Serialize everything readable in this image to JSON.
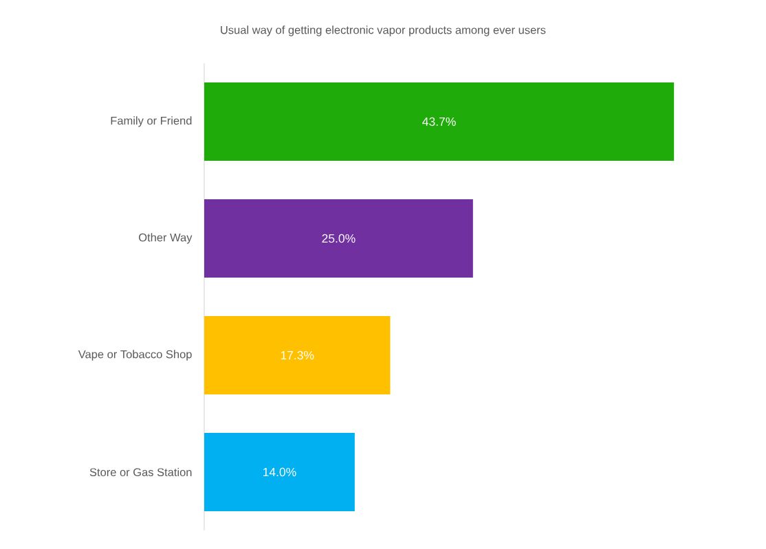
{
  "chart_data": {
    "type": "bar",
    "orientation": "horizontal",
    "title": "Usual way of getting electronic vapor products among ever users",
    "categories": [
      "Family or Friend",
      "Other Way",
      "Vape or Tobacco Shop",
      "Store or Gas Station"
    ],
    "values": [
      43.7,
      25.0,
      17.3,
      14.0
    ],
    "colors": [
      "#1fab09",
      "#7030a0",
      "#ffc000",
      "#00b0f0"
    ],
    "value_labels": [
      "43.7%",
      "25.0%",
      "17.3%",
      "14.0%"
    ]
  }
}
